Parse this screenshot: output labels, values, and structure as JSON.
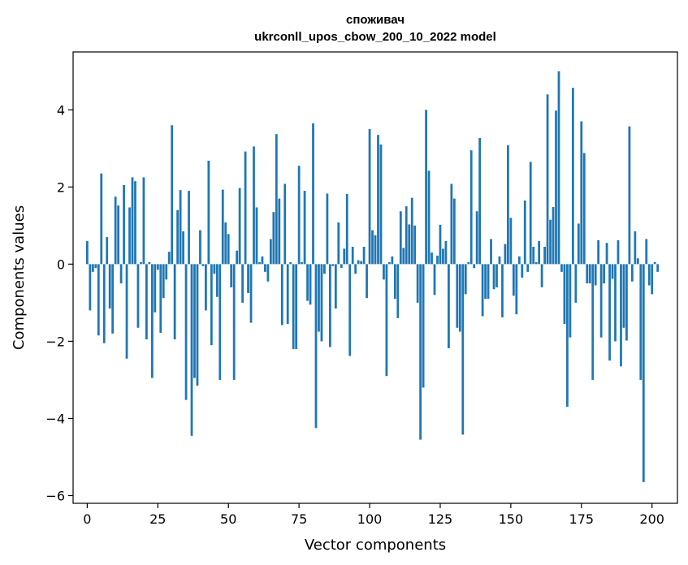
{
  "chart_data": {
    "type": "bar",
    "title": "споживач",
    "subtitle": "ukrconll_upos_cbow_200_10_2022 model",
    "xlabel": "Vector components",
    "ylabel": "Components values",
    "xlim": [
      -5,
      209
    ],
    "ylim": [
      -6.2,
      5.5
    ],
    "xticks": [
      0,
      25,
      50,
      75,
      100,
      125,
      150,
      175,
      200
    ],
    "yticks": [
      -6,
      -4,
      -2,
      0,
      2,
      4
    ],
    "bar_color": "#1f77b4",
    "values": [
      0.6,
      -1.2,
      -0.2,
      -0.1,
      -1.85,
      2.35,
      -2.05,
      0.7,
      -1.15,
      -1.8,
      1.75,
      1.52,
      -0.5,
      2.05,
      -2.45,
      1.47,
      2.25,
      2.15,
      -1.65,
      0.05,
      2.25,
      -1.95,
      0.05,
      -2.95,
      -1.25,
      -0.15,
      -1.78,
      -0.88,
      -0.4,
      0.32,
      3.6,
      -1.95,
      1.4,
      1.92,
      0.85,
      -3.52,
      1.9,
      -4.45,
      -2.95,
      -3.15,
      0.88,
      -0.05,
      -1.2,
      2.68,
      -2.1,
      -0.25,
      -0.85,
      -3.0,
      1.93,
      1.08,
      0.78,
      -0.6,
      -3.0,
      0.35,
      1.97,
      -1.0,
      2.92,
      -0.75,
      -1.52,
      3.05,
      1.47,
      0.05,
      0.2,
      -0.2,
      -0.45,
      0.65,
      1.35,
      3.37,
      1.7,
      -1.58,
      2.08,
      -1.55,
      0.05,
      -2.2,
      -2.2,
      2.55,
      0.05,
      1.9,
      -0.95,
      -1.05,
      3.65,
      -4.25,
      -1.75,
      -2.0,
      -0.25,
      1.83,
      -2.15,
      -0.05,
      -1.15,
      1.08,
      -0.1,
      0.4,
      1.82,
      -2.38,
      0.45,
      -0.25,
      0.1,
      0.08,
      0.45,
      -0.88,
      3.5,
      0.88,
      0.75,
      3.35,
      3.1,
      -0.4,
      -2.9,
      0.05,
      0.2,
      -0.9,
      -1.4,
      1.37,
      0.42,
      1.5,
      1.03,
      1.72,
      1.0,
      -1.0,
      -4.55,
      -3.2,
      4.0,
      2.42,
      0.3,
      -0.8,
      0.22,
      1.02,
      0.4,
      0.6,
      -2.18,
      2.08,
      1.7,
      -1.65,
      -1.75,
      -4.42,
      -0.78,
      0.05,
      2.95,
      -0.1,
      1.37,
      3.27,
      -1.35,
      -0.9,
      -0.9,
      0.65,
      -0.65,
      -0.6,
      0.2,
      -1.38,
      0.52,
      3.08,
      1.2,
      -0.82,
      -1.3,
      0.2,
      -0.35,
      1.65,
      -0.2,
      2.65,
      0.45,
      0.05,
      0.6,
      -0.6,
      0.45,
      4.4,
      1.15,
      1.48,
      3.98,
      5.0,
      -0.2,
      -1.55,
      -3.7,
      -1.9,
      4.57,
      -1.0,
      1.05,
      3.7,
      2.88,
      -0.5,
      -0.5,
      -3.0,
      -0.55,
      0.62,
      -1.9,
      -0.5,
      0.55,
      -2.5,
      -0.38,
      -2.0,
      0.62,
      -2.65,
      -1.65,
      -1.98,
      3.57,
      -0.45,
      0.85,
      0.15,
      -3.0,
      -5.65,
      0.65,
      -0.55,
      -0.78,
      0.05,
      -0.2
    ]
  }
}
